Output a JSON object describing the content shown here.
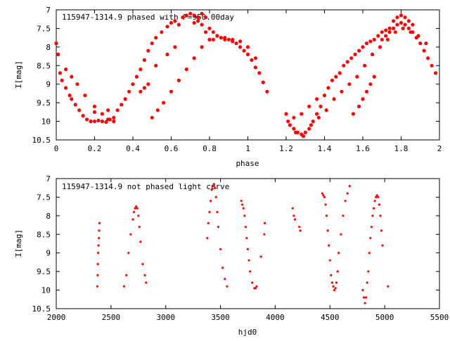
{
  "chart_data": [
    {
      "type": "scatter",
      "title": "115947-1314.9 phased with P=950.00day",
      "xlabel": "phase",
      "ylabel": "I[mag]",
      "xlim": [
        0,
        2
      ],
      "ylim": [
        10.5,
        7
      ],
      "y_inverted": true,
      "xticks": [
        "0",
        "0.2",
        "0.4",
        "0.6",
        "0.8",
        "1",
        "1.2",
        "1.4",
        "1.6",
        "1.8",
        "2"
      ],
      "yticks": [
        "7",
        "7.5",
        "8",
        "8.5",
        "9",
        "9.5",
        "10",
        "10.5"
      ],
      "grid": false,
      "marker_color": "#ff0000",
      "series": [
        {
          "x": [
            0.0,
            0.01,
            0.02,
            0.03,
            0.05,
            0.07,
            0.08,
            0.1,
            0.12,
            0.14,
            0.16,
            0.18,
            0.2,
            0.22,
            0.24,
            0.26,
            0.28,
            0.3,
            0.32,
            0.34,
            0.36,
            0.38,
            0.4,
            0.42,
            0.44,
            0.46,
            0.48,
            0.5,
            0.52,
            0.55,
            0.58,
            0.6,
            0.62,
            0.64,
            0.66,
            0.68,
            0.7,
            0.72,
            0.74,
            0.76,
            0.78,
            0.8,
            0.82,
            0.84,
            0.86,
            0.88,
            0.9,
            0.92,
            0.94,
            0.96,
            0.98,
            1.0,
            1.02,
            1.04,
            1.06,
            1.08,
            1.1,
            0.05,
            0.08,
            0.11,
            0.15,
            0.2,
            0.24,
            0.27,
            0.3,
            0.5,
            0.53,
            0.56,
            0.6,
            0.64,
            0.68,
            0.72,
            0.76,
            0.8,
            0.84,
            0.88,
            0.92,
            0.96,
            1.0,
            1.04,
            0.72,
            0.74,
            0.76,
            0.78,
            0.8,
            0.82,
            0.2,
            0.27,
            0.44,
            0.46,
            0.48,
            0.52,
            0.58,
            0.62
          ],
          "y": [
            7.9,
            8.2,
            8.7,
            8.9,
            9.1,
            9.3,
            9.4,
            9.55,
            9.7,
            9.85,
            9.95,
            10.0,
            10.0,
            9.98,
            10.0,
            10.02,
            9.95,
            9.9,
            9.7,
            9.55,
            9.4,
            9.2,
            9.0,
            8.8,
            8.6,
            8.35,
            8.1,
            7.9,
            7.75,
            7.6,
            7.45,
            7.35,
            7.3,
            7.4,
            7.2,
            7.15,
            7.1,
            7.15,
            7.2,
            7.1,
            7.2,
            7.5,
            7.6,
            7.7,
            7.75,
            7.8,
            7.8,
            7.85,
            7.9,
            8.0,
            8.1,
            8.2,
            8.35,
            8.55,
            8.7,
            8.95,
            9.2,
            8.6,
            8.8,
            9.0,
            9.3,
            9.6,
            9.8,
            9.95,
            10.0,
            9.9,
            9.7,
            9.5,
            9.2,
            8.9,
            8.6,
            8.3,
            8.0,
            7.8,
            7.7,
            7.75,
            7.8,
            7.85,
            8.0,
            8.3,
            7.35,
            7.3,
            7.4,
            7.6,
            7.8,
            7.8,
            9.75,
            9.7,
            9.2,
            9.1,
            9.0,
            8.5,
            8.2,
            8.0
          ]
        },
        {
          "x": [
            1.2,
            1.22,
            1.24,
            1.26,
            1.28,
            1.3,
            1.32,
            1.34,
            1.36,
            1.38,
            1.4,
            1.42,
            1.44,
            1.46,
            1.48,
            1.5,
            1.52,
            1.54,
            1.56,
            1.58,
            1.6,
            1.62,
            1.64,
            1.66,
            1.68,
            1.7,
            1.72,
            1.74,
            1.76,
            1.78,
            1.8,
            1.82,
            1.84,
            1.86,
            1.88,
            1.9,
            1.92,
            1.94,
            1.96,
            1.98,
            1.21,
            1.25,
            1.29,
            1.33,
            1.37,
            1.41,
            1.45,
            1.49,
            1.53,
            1.57,
            1.61,
            1.65,
            1.69,
            1.73,
            1.77,
            1.81,
            1.85,
            1.89,
            1.93,
            1.24,
            1.28,
            1.32,
            1.36,
            1.6,
            1.62,
            1.64,
            1.66,
            1.55,
            1.58,
            1.7,
            1.72,
            1.74,
            1.76,
            1.78,
            1.8,
            1.82,
            1.84,
            1.86
          ],
          "y": [
            9.8,
            10.1,
            10.2,
            10.3,
            10.35,
            10.3,
            10.2,
            10.0,
            9.8,
            9.6,
            9.3,
            9.1,
            8.9,
            8.8,
            8.7,
            8.5,
            8.4,
            8.3,
            8.2,
            8.1,
            8.0,
            7.9,
            7.85,
            7.8,
            7.7,
            7.6,
            7.55,
            7.5,
            7.5,
            7.4,
            7.35,
            7.4,
            7.5,
            7.6,
            7.75,
            7.9,
            8.1,
            8.3,
            8.5,
            8.7,
            10.0,
            10.3,
            10.4,
            10.1,
            9.9,
            9.7,
            9.4,
            9.2,
            9.0,
            8.8,
            8.5,
            8.2,
            8.0,
            7.8,
            7.6,
            7.5,
            7.6,
            7.7,
            7.9,
            9.9,
            9.8,
            9.6,
            9.4,
            9.4,
            9.2,
            9.0,
            8.8,
            9.8,
            9.6,
            7.8,
            7.7,
            7.6,
            7.3,
            7.2,
            7.15,
            7.2,
            7.3,
            7.4
          ]
        }
      ]
    },
    {
      "type": "scatter",
      "title": "115947-1314.9 not phased light curve",
      "xlabel": "hjd0",
      "ylabel": "I[mag]",
      "xlim": [
        2000,
        5500
      ],
      "ylim": [
        10.5,
        7
      ],
      "y_inverted": true,
      "xticks": [
        "2000",
        "2500",
        "3000",
        "3500",
        "4000",
        "4500",
        "5000",
        "5500"
      ],
      "yticks": [
        "7",
        "7.5",
        "8",
        "8.5",
        "9",
        "9.5",
        "10",
        "10.5"
      ],
      "grid": false,
      "marker_color": "#ff0000",
      "series": [
        {
          "x": [
            2375,
            2378,
            2380,
            2383,
            2386,
            2390,
            2392,
            2395,
            2620,
            2640,
            2660,
            2680,
            2700,
            2710,
            2720,
            2730,
            2740,
            2750,
            2760,
            2770,
            2790,
            2810,
            2820,
            3380,
            3390,
            3400,
            3410,
            3420,
            3430,
            3440,
            3450,
            3460,
            3470,
            3480,
            3500,
            3520,
            3540,
            3560,
            3690,
            3700,
            3710,
            3720,
            3730,
            3740,
            3750,
            3760,
            3770,
            3790,
            3810,
            3820,
            3830,
            3870,
            3900,
            3905,
            4160,
            4170,
            4180,
            4220,
            4230,
            4430,
            4440,
            4450,
            4460,
            4470,
            4480,
            4490,
            4500,
            4510,
            4520,
            4530,
            4540,
            4550,
            4560,
            4570,
            4580,
            4600,
            4620,
            4640,
            4660,
            4680,
            4800,
            4810,
            4820,
            4830,
            4840,
            4850,
            4860,
            4870,
            4880,
            4890,
            4900,
            4910,
            4920,
            4930,
            4940,
            4950,
            4960,
            4970,
            4980,
            5030
          ],
          "y": [
            9.9,
            9.6,
            9.3,
            9.0,
            8.8,
            8.6,
            8.4,
            8.2,
            9.9,
            9.6,
            9.0,
            8.5,
            8.1,
            7.9,
            7.8,
            7.75,
            7.8,
            8.0,
            8.3,
            8.7,
            9.3,
            9.6,
            9.8,
            8.6,
            8.2,
            7.9,
            7.6,
            7.3,
            7.2,
            7.15,
            7.25,
            7.5,
            7.9,
            8.3,
            8.9,
            9.4,
            9.7,
            9.9,
            7.6,
            7.7,
            7.8,
            8.0,
            8.3,
            8.6,
            8.9,
            9.2,
            9.5,
            9.8,
            9.95,
            9.95,
            9.9,
            9.1,
            8.5,
            8.2,
            7.8,
            8.0,
            8.1,
            8.3,
            8.4,
            7.4,
            7.45,
            7.5,
            7.7,
            8.0,
            8.4,
            8.8,
            9.2,
            9.6,
            9.8,
            9.9,
            10.0,
            9.95,
            9.8,
            9.5,
            9.0,
            8.5,
            8.0,
            7.6,
            7.4,
            7.2,
            10.0,
            10.2,
            10.35,
            10.2,
            9.8,
            9.5,
            9.0,
            8.6,
            8.3,
            8.0,
            7.8,
            7.6,
            7.5,
            7.45,
            7.5,
            7.7,
            8.0,
            8.4,
            8.8,
            9.9
          ]
        }
      ]
    }
  ]
}
